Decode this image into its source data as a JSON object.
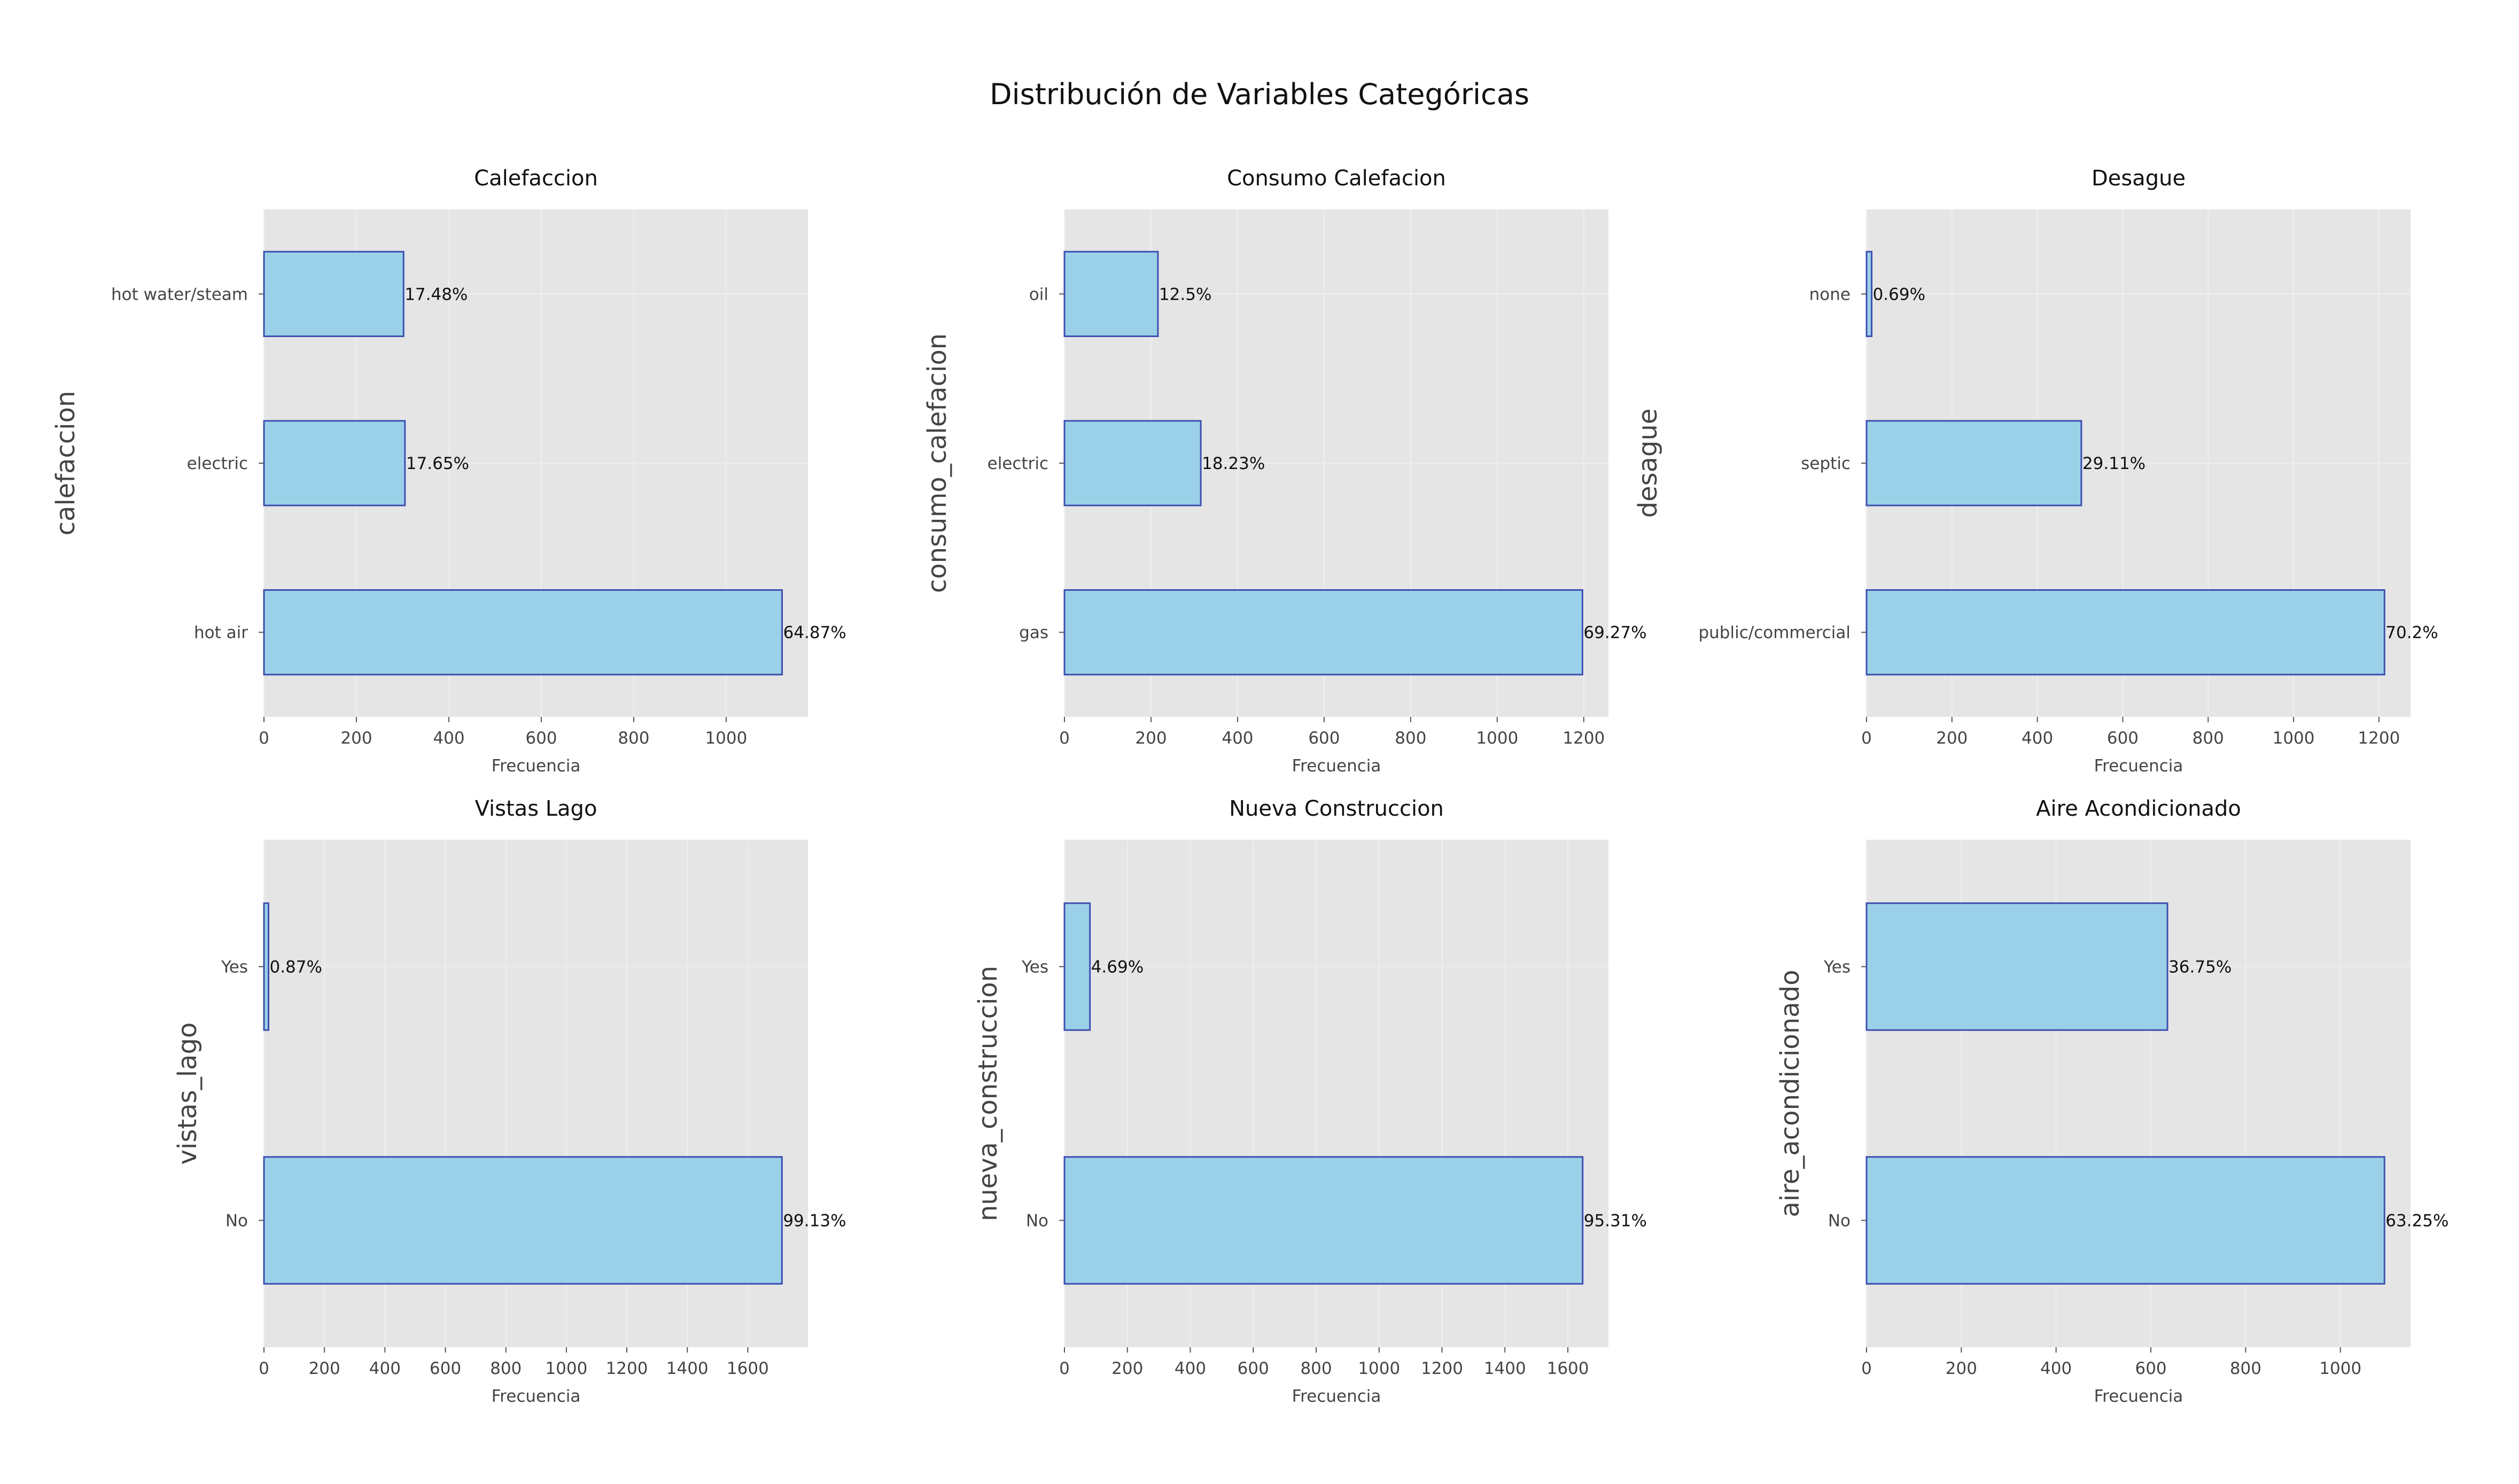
{
  "figure_title": "Distribución de Variables Categóricas",
  "colors": {
    "bar_fill": "#9bd1e8",
    "bar_edge": "#3d4fb0",
    "plot_background": "#e5e5e5",
    "grid": "#efefef"
  },
  "chart_data": [
    {
      "type": "bar",
      "orientation": "horizontal",
      "title": "Calefaccion",
      "xlabel": "Frecuencia",
      "ylabel": "calefaccion",
      "categories": [
        "hot water/steam",
        "electric",
        "hot air"
      ],
      "values": [
        302,
        305,
        1121
      ],
      "bar_labels": [
        "17.48%",
        "17.65%",
        "64.87%"
      ],
      "xlim": [
        0,
        1177
      ],
      "xticks": [
        0,
        200,
        400,
        600,
        800,
        1000
      ],
      "grid": true
    },
    {
      "type": "bar",
      "orientation": "horizontal",
      "title": "Consumo Calefacion",
      "xlabel": "Frecuencia",
      "ylabel": "consumo_calefacion",
      "categories": [
        "oil",
        "electric",
        "gas"
      ],
      "values": [
        216,
        315,
        1197
      ],
      "bar_labels": [
        "12.5%",
        "18.23%",
        "69.27%"
      ],
      "xlim": [
        0,
        1257
      ],
      "xticks": [
        0,
        200,
        400,
        600,
        800,
        1000,
        1200
      ],
      "grid": true
    },
    {
      "type": "bar",
      "orientation": "horizontal",
      "title": "Desague",
      "xlabel": "Frecuencia",
      "ylabel": "desague",
      "categories": [
        "none",
        "septic",
        "public/commercial"
      ],
      "values": [
        12,
        503,
        1213
      ],
      "bar_labels": [
        "0.69%",
        "29.11%",
        "70.2%"
      ],
      "xlim": [
        0,
        1274
      ],
      "xticks": [
        0,
        200,
        400,
        600,
        800,
        1000,
        1200
      ],
      "grid": true
    },
    {
      "type": "bar",
      "orientation": "horizontal",
      "title": "Vistas Lago",
      "xlabel": "Frecuencia",
      "ylabel": "vistas_lago",
      "categories": [
        "Yes",
        "No"
      ],
      "values": [
        15,
        1713
      ],
      "bar_labels": [
        "0.87%",
        "99.13%"
      ],
      "xlim": [
        0,
        1799
      ],
      "xticks": [
        0,
        200,
        400,
        600,
        800,
        1000,
        1200,
        1400,
        1600
      ],
      "grid": true
    },
    {
      "type": "bar",
      "orientation": "horizontal",
      "title": "Nueva Construccion",
      "xlabel": "Frecuencia",
      "ylabel": "nueva_construccion",
      "categories": [
        "Yes",
        "No"
      ],
      "values": [
        81,
        1647
      ],
      "bar_labels": [
        "4.69%",
        "95.31%"
      ],
      "xlim": [
        0,
        1729
      ],
      "xticks": [
        0,
        200,
        400,
        600,
        800,
        1000,
        1200,
        1400,
        1600
      ],
      "grid": true
    },
    {
      "type": "bar",
      "orientation": "horizontal",
      "title": "Aire Acondicionado",
      "xlabel": "Frecuencia",
      "ylabel": "aire_acondicionado",
      "categories": [
        "Yes",
        "No"
      ],
      "values": [
        635,
        1093
      ],
      "bar_labels": [
        "36.75%",
        "63.25%"
      ],
      "xlim": [
        0,
        1148
      ],
      "xticks": [
        0,
        200,
        400,
        600,
        800,
        1000
      ],
      "grid": true
    }
  ]
}
